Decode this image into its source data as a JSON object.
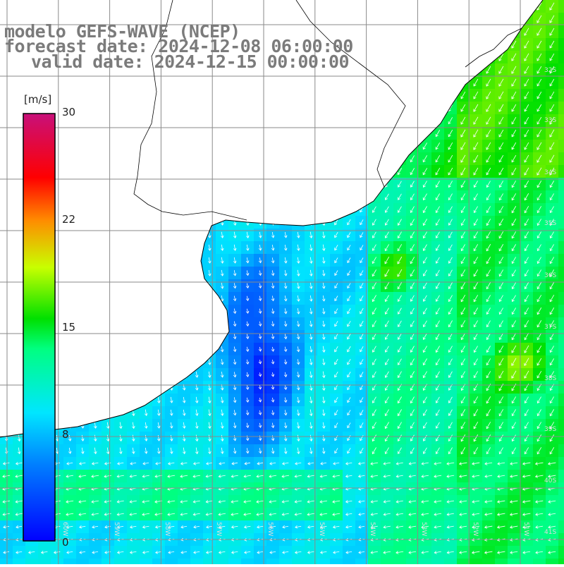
{
  "title": {
    "line1": "modelo GEFS-WAVE (NCEP)",
    "line2": "forecast date: 2024-12-08 06:00:00",
    "line3": "valid date: 2024-12-15 00:00:00"
  },
  "colorbar": {
    "unit": "[m/s]",
    "ticks": [
      "30",
      "22",
      "15",
      "8",
      "0"
    ],
    "colors": [
      "#c8107a",
      "#ff0000",
      "#ff8000",
      "#ffff00",
      "#00e000",
      "#00ffff",
      "#0080ff",
      "#0000ff"
    ]
  },
  "map": {
    "lat_labels": [
      "32S",
      "33S",
      "34S",
      "35S",
      "36S",
      "37S",
      "38S",
      "39S",
      "40S",
      "41S"
    ],
    "lon_labels": [
      "60W",
      "59W",
      "58W",
      "57W",
      "56W",
      "55W",
      "54W",
      "53W",
      "52W",
      "51W"
    ],
    "land_color": "#ffffff",
    "grid_color": "#808080",
    "coast_color": "#000000",
    "arrow_color": "#ffffff"
  }
}
